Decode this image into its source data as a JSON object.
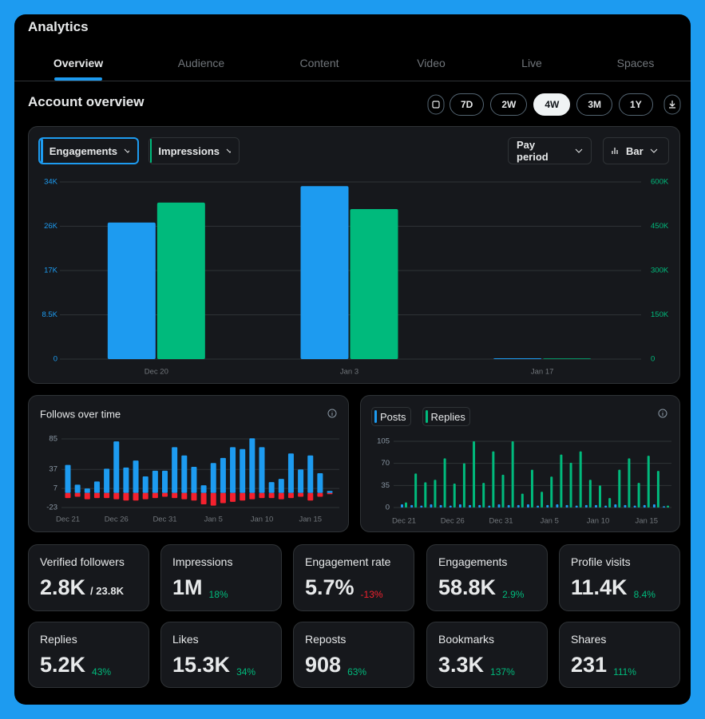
{
  "header": {
    "title": "Analytics",
    "tabs": [
      "Overview",
      "Audience",
      "Content",
      "Video",
      "Live",
      "Spaces"
    ],
    "active_tab": 0
  },
  "account_overview": {
    "title": "Account overview",
    "ranges": [
      "7D",
      "2W",
      "4W",
      "3M",
      "1Y"
    ],
    "active_range": 2
  },
  "main_chart": {
    "type": "bar",
    "controls": [
      "Pay period",
      "Bar"
    ],
    "categories": [
      "Dec 20",
      "Jan 3",
      "Jan 17"
    ],
    "series": [
      {
        "name": "Engagements",
        "color": "#1d9bf0",
        "values": [
          26200,
          33200,
          150
        ]
      },
      {
        "name": "Impressions",
        "color": "#00ba7c",
        "axis": "y2",
        "values": [
          530000,
          508000,
          2000
        ]
      }
    ],
    "ylim": [
      0,
      34000
    ],
    "yticks": [
      0,
      {
        "value": 8500,
        "label": "8.5K"
      },
      {
        "value": 17000,
        "label": "17K"
      },
      {
        "value": 25500,
        "label": "26K"
      },
      {
        "value": 34000,
        "label": "34K"
      }
    ],
    "y2lim": [
      0,
      600000
    ],
    "y2ticks": [
      0,
      {
        "value": 150000,
        "label": "150K"
      },
      {
        "value": 300000,
        "label": "300K"
      },
      {
        "value": 450000,
        "label": "450K"
      },
      {
        "value": 600000,
        "label": "600K"
      }
    ],
    "grid": true
  },
  "follows_chart": {
    "type": "bar",
    "title": "Follows over time",
    "barmode": "relative",
    "categories": [
      "Dec 21",
      null,
      null,
      null,
      null,
      "Dec 26",
      null,
      null,
      null,
      null,
      "Dec 31",
      null,
      null,
      null,
      null,
      "Jan 5",
      null,
      null,
      null,
      null,
      "Jan 10",
      null,
      null,
      null,
      null,
      "Jan 15",
      null,
      null
    ],
    "series": [
      {
        "color": "#1d9bf0",
        "values": [
          44,
          13,
          7,
          18,
          38,
          81,
          40,
          51,
          26,
          35,
          35,
          72,
          59,
          41,
          12,
          47,
          55,
          72,
          69,
          86,
          72,
          17,
          22,
          62,
          37,
          59,
          31,
          3
        ]
      },
      {
        "color": "#f4212e",
        "values": [
          -8,
          -6,
          -10,
          -8,
          -8,
          -10,
          -12,
          -12,
          -10,
          -8,
          -6,
          -8,
          -10,
          -12,
          -18,
          -20,
          -16,
          -14,
          -12,
          -10,
          -8,
          -8,
          -10,
          -8,
          -6,
          -12,
          -6,
          -2
        ]
      }
    ],
    "ylim": [
      -28,
      88
    ],
    "yticks": [
      -23,
      7,
      37,
      85
    ],
    "grid": true
  },
  "posts_chart": {
    "type": "bar",
    "barmode": "group",
    "categories": [
      "Dec 21",
      null,
      null,
      null,
      null,
      "Dec 26",
      null,
      null,
      null,
      null,
      "Dec 31",
      null,
      null,
      null,
      null,
      "Jan 5",
      null,
      null,
      null,
      null,
      "Jan 10",
      null,
      null,
      null,
      null,
      "Jan 15",
      null,
      null
    ],
    "series": [
      {
        "name": "Posts",
        "color": "#1d9bf0",
        "values": [
          5,
          4,
          3,
          5,
          4,
          3,
          5,
          4,
          4,
          3,
          5,
          4,
          4,
          5,
          3,
          4,
          5,
          4,
          3,
          4,
          4,
          3,
          5,
          4,
          3,
          4,
          5,
          2
        ]
      },
      {
        "name": "Replies",
        "color": "#00ba7c",
        "values": [
          8,
          54,
          40,
          44,
          78,
          38,
          70,
          105,
          39,
          89,
          52,
          105,
          22,
          60,
          25,
          49,
          84,
          71,
          89,
          44,
          35,
          15,
          60,
          78,
          39,
          82,
          58,
          3
        ]
      }
    ],
    "ylim": [
      0,
      105
    ],
    "yticks": [
      0,
      35,
      70,
      105
    ],
    "grid": true
  },
  "stats": [
    {
      "label": "Verified followers",
      "value": "2.8K",
      "total": "/ 23.8K",
      "verified": true
    },
    {
      "label": "Impressions",
      "value": "1M",
      "change": "18%",
      "trend": "up"
    },
    {
      "label": "Engagement rate",
      "value": "5.7%",
      "change": "-13%",
      "trend": "down"
    },
    {
      "label": "Engagements",
      "value": "58.8K",
      "change": "2.9%",
      "trend": "up"
    },
    {
      "label": "Profile visits",
      "value": "11.4K",
      "change": "8.4%",
      "trend": "up"
    },
    {
      "label": "Replies",
      "value": "5.2K",
      "change": "43%",
      "trend": "up"
    },
    {
      "label": "Likes",
      "value": "15.3K",
      "change": "34%",
      "trend": "up"
    },
    {
      "label": "Reposts",
      "value": "908",
      "change": "63%",
      "trend": "up"
    },
    {
      "label": "Bookmarks",
      "value": "3.3K",
      "change": "137%",
      "trend": "up"
    },
    {
      "label": "Shares",
      "value": "231",
      "change": "111%",
      "trend": "up"
    }
  ]
}
